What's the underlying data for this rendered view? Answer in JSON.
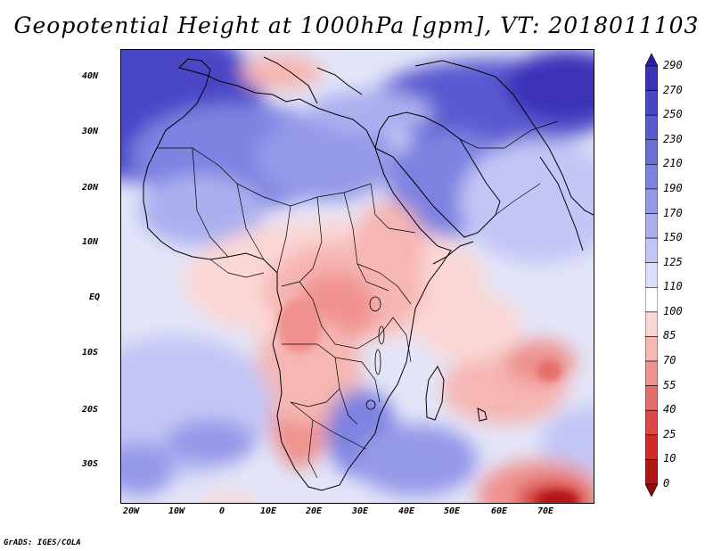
{
  "title": "Geopotential Height at 1000hPa [gpm], VT: 2018011103",
  "credit": "GrADS: IGES/COLA",
  "map": {
    "lon_range": [
      -23,
      80
    ],
    "lat_range": [
      -37,
      45
    ],
    "x_ticks": [
      "20W",
      "10W",
      "0",
      "10E",
      "20E",
      "30E",
      "40E",
      "50E",
      "60E",
      "70E"
    ],
    "y_ticks": [
      "40N",
      "30N",
      "20N",
      "10N",
      "EQ",
      "10S",
      "20S",
      "30S"
    ]
  },
  "colorbar": {
    "levels": [
      "290",
      "270",
      "250",
      "230",
      "210",
      "190",
      "170",
      "150",
      "125",
      "110",
      "100",
      "85",
      "70",
      "55",
      "40",
      "25",
      "10",
      "0"
    ],
    "colors": [
      "#2a1fa3",
      "#3a33b8",
      "#4a47c6",
      "#5a5ad0",
      "#6b6dd9",
      "#7e82e1",
      "#9499e8",
      "#aab0ef",
      "#c2c6f5",
      "#dcdffa",
      "#ffffff",
      "#fbd7d5",
      "#f6b6b2",
      "#ef928e",
      "#e66e6a",
      "#db4a47",
      "#cf2a28",
      "#b01614",
      "#8e0c0a"
    ]
  }
}
